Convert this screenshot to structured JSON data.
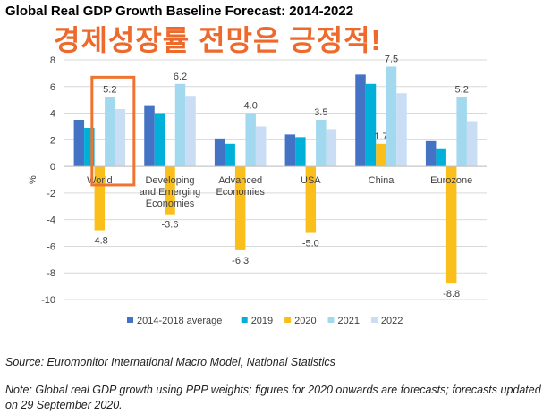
{
  "title": "Global Real GDP Growth Baseline Forecast: 2014-2022",
  "headline": "경제성장률 전망은 긍정적!",
  "source": "Source: Euromonitor International Macro Model, National Statistics",
  "note": "Note: Global real GDP growth using PPP weights; figures for 2020 onwards are forecasts; forecasts updated on 29 September 2020.",
  "highlight_color": "#ee7430",
  "chart_data": {
    "type": "bar",
    "ylabel": "%",
    "ylim": [
      -10,
      8
    ],
    "yticks": [
      -10,
      -8,
      -6,
      -4,
      -2,
      0,
      2,
      4,
      6,
      8
    ],
    "categories": [
      [
        "World"
      ],
      [
        "Developing",
        "and Emerging",
        "Economies"
      ],
      [
        "Advanced",
        "Economies"
      ],
      [
        "USA"
      ],
      [
        "China"
      ],
      [
        "Eurozone"
      ]
    ],
    "series": [
      {
        "name": "2014-2018 average",
        "color": "#4472c4",
        "values": [
          3.5,
          4.6,
          2.1,
          2.4,
          6.9,
          1.9
        ]
      },
      {
        "name": "2019",
        "color": "#00b0d8",
        "values": [
          2.9,
          4.0,
          1.7,
          2.2,
          6.2,
          1.3
        ]
      },
      {
        "name": "2020",
        "color": "#fbbf1c",
        "values": [
          -4.8,
          -3.6,
          -6.3,
          -5.0,
          1.7,
          -8.8
        ]
      },
      {
        "name": "2021",
        "color": "#a3d9ef",
        "values": [
          5.2,
          6.2,
          4.0,
          3.5,
          7.5,
          5.2
        ]
      },
      {
        "name": "2022",
        "color": "#c9def5",
        "values": [
          4.3,
          5.3,
          3.0,
          2.8,
          5.5,
          3.4
        ]
      }
    ],
    "data_labels": {
      "2020": [
        "-4.8",
        "-3.6",
        "-6.3",
        "-5.0",
        "1.7",
        "-8.8"
      ],
      "2021": [
        "5.2",
        "6.2",
        "4.0",
        "3.5",
        "7.5",
        "5.2"
      ]
    },
    "highlight_category": "World",
    "legend_position": "bottom"
  }
}
